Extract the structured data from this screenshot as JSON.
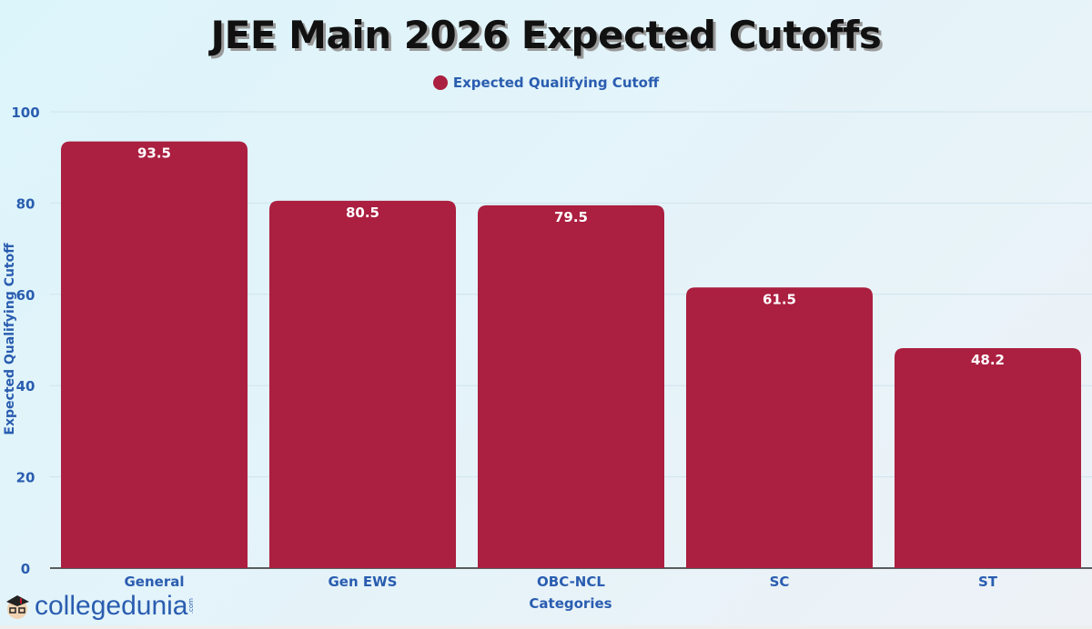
{
  "chart_data": {
    "type": "bar",
    "title": "JEE Main 2026 Expected Cutoffs",
    "xlabel": "Categories",
    "ylabel": "Expected Qualifying Cutoff",
    "ylim": [
      0,
      100
    ],
    "yticks": [
      0,
      20,
      40,
      60,
      80,
      100
    ],
    "grid": true,
    "legend_placement": "top-center",
    "categories": [
      "General",
      "Gen EWS",
      "OBC-NCL",
      "SC",
      "ST"
    ],
    "series": [
      {
        "name": "Expected Qualifying Cutoff",
        "values": [
          93.5,
          80.5,
          79.5,
          61.5,
          48.2
        ],
        "color": "#ab1f40"
      }
    ],
    "data_labels": true
  },
  "colors": {
    "axis_text": "#2a5db0",
    "title": "#111111"
  },
  "logo": {
    "text": "collegedunia",
    "suffix": ".com"
  }
}
